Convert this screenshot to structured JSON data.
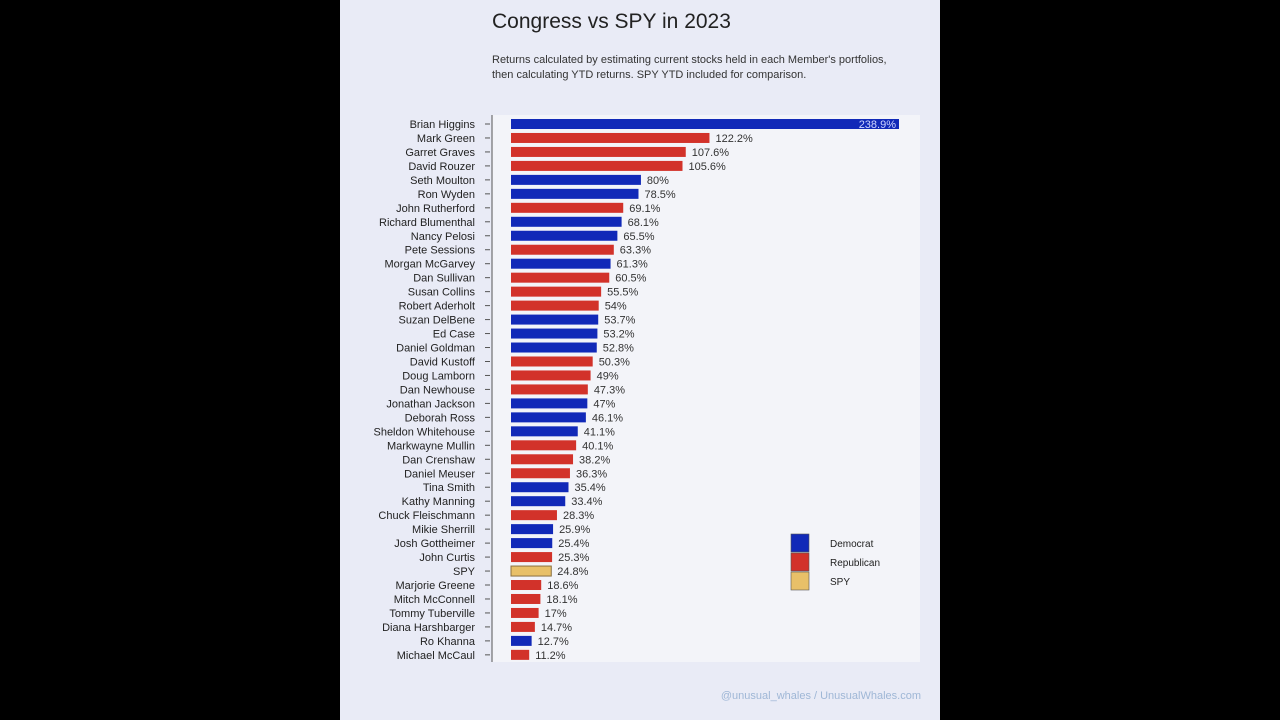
{
  "chart_data": {
    "type": "bar",
    "orientation": "horizontal",
    "title": "Congress vs SPY in 2023",
    "subtitle": "Returns calculated by estimating current stocks held in each Member's portfolios, then calculating YTD returns. SPY YTD included for comparison.",
    "categories": [
      "Brian Higgins",
      "Mark Green",
      "Garret Graves",
      "David Rouzer",
      "Seth Moulton",
      "Ron Wyden",
      "John Rutherford",
      "Richard Blumenthal",
      "Nancy Pelosi",
      "Pete Sessions",
      "Morgan McGarvey",
      "Dan Sullivan",
      "Susan Collins",
      "Robert Aderholt",
      "Suzan DelBene",
      "Ed Case",
      "Daniel Goldman",
      "David Kustoff",
      "Doug Lamborn",
      "Dan Newhouse",
      "Jonathan Jackson",
      "Deborah Ross",
      "Sheldon Whitehouse",
      "Markwayne Mullin",
      "Dan Crenshaw",
      "Daniel Meuser",
      "Tina Smith",
      "Kathy Manning",
      "Chuck Fleischmann",
      "Mikie Sherrill",
      "Josh Gottheimer",
      "John Curtis",
      "SPY",
      "Marjorie Greene",
      "Mitch McConnell",
      "Tommy Tuberville",
      "Diana Harshbarger",
      "Ro Khanna",
      "Michael McCaul"
    ],
    "values": [
      238.9,
      122.2,
      107.6,
      105.6,
      80,
      78.5,
      69.1,
      68.1,
      65.5,
      63.3,
      61.3,
      60.5,
      55.5,
      54,
      53.7,
      53.2,
      52.8,
      50.3,
      49,
      47.3,
      47,
      46.1,
      41.1,
      40.1,
      38.2,
      36.3,
      35.4,
      33.4,
      28.3,
      25.9,
      25.4,
      25.3,
      24.8,
      18.6,
      18.1,
      17,
      14.7,
      12.7,
      11.2
    ],
    "value_labels": [
      "238.9%",
      "122.2%",
      "107.6%",
      "105.6%",
      "80%",
      "78.5%",
      "69.1%",
      "68.1%",
      "65.5%",
      "63.3%",
      "61.3%",
      "60.5%",
      "55.5%",
      "54%",
      "53.7%",
      "53.2%",
      "52.8%",
      "50.3%",
      "49%",
      "47.3%",
      "47%",
      "46.1%",
      "41.1%",
      "40.1%",
      "38.2%",
      "36.3%",
      "35.4%",
      "33.4%",
      "28.3%",
      "25.9%",
      "25.4%",
      "25.3%",
      "24.8%",
      "18.6%",
      "18.1%",
      "17%",
      "14.7%",
      "12.7%",
      "11.2%"
    ],
    "groups": [
      "Democrat",
      "Republican",
      "Republican",
      "Republican",
      "Democrat",
      "Democrat",
      "Republican",
      "Democrat",
      "Democrat",
      "Republican",
      "Democrat",
      "Republican",
      "Republican",
      "Republican",
      "Democrat",
      "Democrat",
      "Democrat",
      "Republican",
      "Republican",
      "Republican",
      "Democrat",
      "Democrat",
      "Democrat",
      "Republican",
      "Republican",
      "Republican",
      "Democrat",
      "Democrat",
      "Republican",
      "Democrat",
      "Democrat",
      "Republican",
      "SPY",
      "Republican",
      "Republican",
      "Republican",
      "Republican",
      "Democrat",
      "Republican"
    ],
    "legend": [
      {
        "name": "Democrat",
        "color": "#1129b8"
      },
      {
        "name": "Republican",
        "color": "#d2322a"
      },
      {
        "name": "SPY",
        "color": "#e8c068"
      }
    ],
    "legend_position": "right",
    "xlim": [
      0,
      238.9
    ],
    "grid": false
  },
  "footer": "@unusual_whales / UnusualWhales.com"
}
